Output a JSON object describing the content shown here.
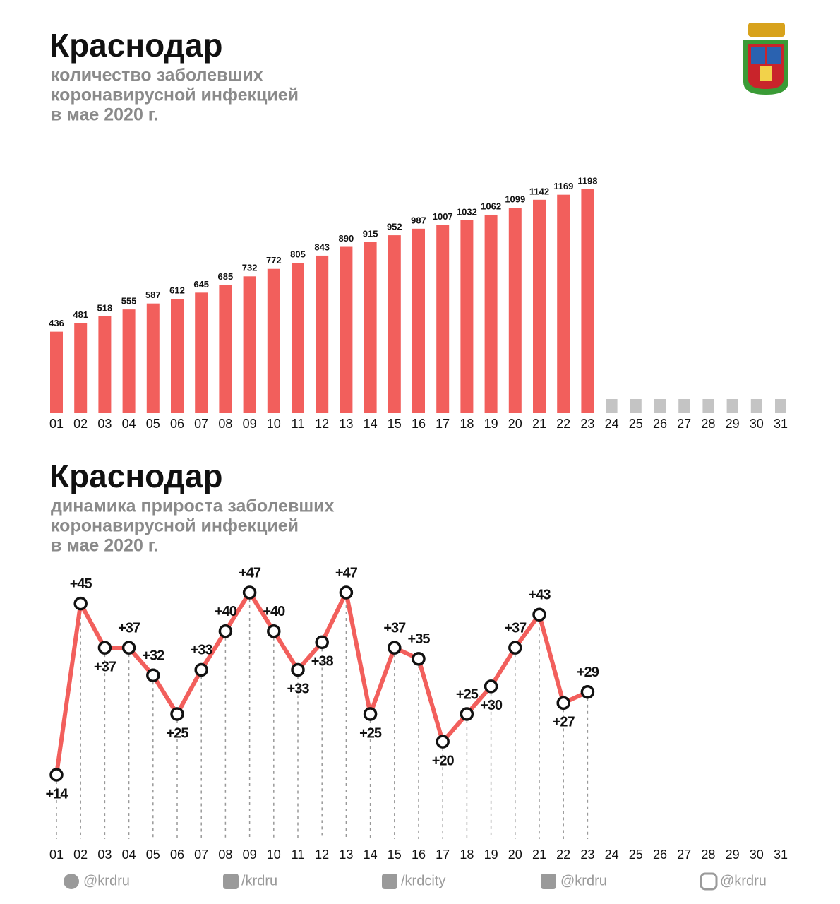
{
  "chart_data": [
    {
      "type": "bar",
      "title": "Краснодар",
      "subtitle": [
        "количество заболевших",
        "коронавирусной инфекцией",
        "в мае 2020 г."
      ],
      "categories": [
        "01",
        "02",
        "03",
        "04",
        "05",
        "06",
        "07",
        "08",
        "09",
        "10",
        "11",
        "12",
        "13",
        "14",
        "15",
        "16",
        "17",
        "18",
        "19",
        "20",
        "21",
        "22",
        "23",
        "24",
        "25",
        "26",
        "27",
        "28",
        "29",
        "30",
        "31"
      ],
      "values": [
        436,
        481,
        518,
        555,
        587,
        612,
        645,
        685,
        732,
        772,
        805,
        843,
        890,
        915,
        952,
        987,
        1007,
        1032,
        1062,
        1099,
        1142,
        1169,
        1198,
        null,
        null,
        null,
        null,
        null,
        null,
        null,
        null
      ],
      "color": "#f25f5c"
    },
    {
      "type": "line",
      "title": "Краснодар",
      "subtitle": [
        "динамика прироста заболевших",
        "коронавирусной инфекцией",
        "в мае 2020 г."
      ],
      "categories": [
        "01",
        "02",
        "03",
        "04",
        "05",
        "06",
        "07",
        "08",
        "09",
        "10",
        "11",
        "12",
        "13",
        "14",
        "15",
        "16",
        "17",
        "18",
        "19",
        "20",
        "21",
        "22",
        "23",
        "24",
        "25",
        "26",
        "27",
        "28",
        "29",
        "30",
        "31"
      ],
      "values": [
        14,
        45,
        37,
        37,
        32,
        25,
        33,
        40,
        47,
        40,
        33,
        38,
        47,
        25,
        37,
        35,
        20,
        25,
        30,
        37,
        43,
        27,
        29,
        null,
        null,
        null,
        null,
        null,
        null,
        null,
        null
      ],
      "value_labels": [
        "+14",
        "+45",
        "+37",
        "+37",
        "+32",
        "+25",
        "+33",
        "+40",
        "+47",
        "+40",
        "+33",
        "+38",
        "+47",
        "+25",
        "+37",
        "+35",
        "+20",
        "+25",
        "+30",
        "+37",
        "+43",
        "+27",
        "+29",
        null,
        null,
        null,
        null,
        null,
        null,
        null,
        null
      ],
      "color": "#f25f5c"
    }
  ],
  "footer": {
    "social": [
      "@krdru",
      "/krdru",
      "/krdcity",
      "@krdru",
      "@krdru"
    ]
  }
}
